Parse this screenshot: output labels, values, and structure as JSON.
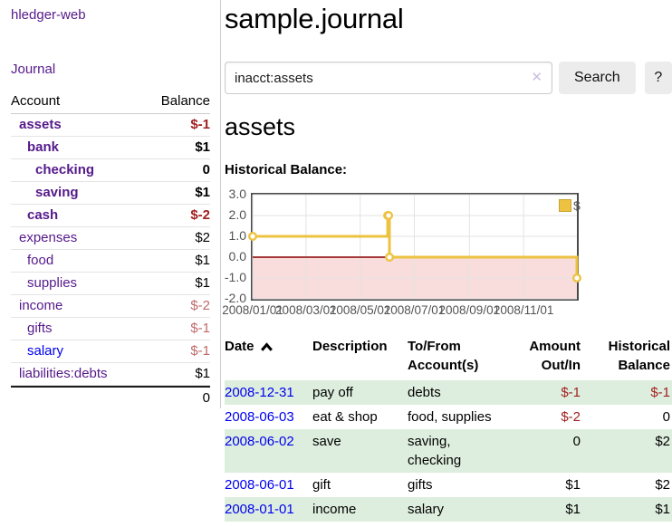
{
  "app": {
    "brand": "hledger-web"
  },
  "sidebar": {
    "journal_label": "Journal",
    "accounts_header": {
      "account": "Account",
      "balance": "Balance"
    },
    "accounts": [
      {
        "name": "assets",
        "balance": "$-1"
      },
      {
        "name": "bank",
        "balance": "$1"
      },
      {
        "name": "checking",
        "balance": "0"
      },
      {
        "name": "saving",
        "balance": "$1"
      },
      {
        "name": "cash",
        "balance": "$-2"
      },
      {
        "name": "expenses",
        "balance": "$2"
      },
      {
        "name": "food",
        "balance": "$1"
      },
      {
        "name": "supplies",
        "balance": "$1"
      },
      {
        "name": "income",
        "balance": "$-2"
      },
      {
        "name": "gifts",
        "balance": "$-1"
      },
      {
        "name": "salary",
        "balance": "$-1"
      },
      {
        "name": "liabilities:debts",
        "balance": "$1"
      }
    ],
    "total": "0"
  },
  "header": {
    "title": "sample.journal"
  },
  "search": {
    "value": "inacct:assets",
    "clear_icon": "✕",
    "button_label": "Search",
    "help_label": "?"
  },
  "content": {
    "account_title": "assets",
    "chart_title": "Historical Balance:"
  },
  "chart_data": {
    "type": "line",
    "step": true,
    "title": "Historical Balance:",
    "xlim": [
      "2008-01-01",
      "2008-12-31"
    ],
    "ylim": [
      -2,
      3
    ],
    "x_ticks": [
      "2008/01/01",
      "2008/03/01",
      "2008/05/01",
      "2008/07/01",
      "2008/09/01",
      "2008/11/01"
    ],
    "y_ticks": [
      3.0,
      2.0,
      1.0,
      0.0,
      -1.0,
      -2.0
    ],
    "series": [
      {
        "name": "$",
        "color": "#edc240",
        "points": [
          [
            "2008-01-01",
            1
          ],
          [
            "2008-06-01",
            2
          ],
          [
            "2008-06-02",
            2
          ],
          [
            "2008-06-03",
            0
          ],
          [
            "2008-12-31",
            -1
          ]
        ]
      }
    ],
    "legend_position": "top-right",
    "grid": true,
    "negative_region_color": "#f9dcdc",
    "zero_line_color": "#8b0000",
    "gridline_color": "#e3e3e3"
  },
  "register": {
    "columns": {
      "date": "Date",
      "description": "Description",
      "accounts": "To/From Account(s)",
      "amount": "Amount Out/In",
      "historical": "Historical Balance"
    },
    "rows": [
      {
        "date": "2008-12-31",
        "description": "pay off",
        "accounts": "debts",
        "amount": "$-1",
        "historical": "$-1"
      },
      {
        "date": "2008-06-03",
        "description": "eat & shop",
        "accounts": "food, supplies",
        "amount": "$-2",
        "historical": "0"
      },
      {
        "date": "2008-06-02",
        "description": "save",
        "accounts": "saving, checking",
        "amount": "0",
        "historical": "$2"
      },
      {
        "date": "2008-06-01",
        "description": "gift",
        "accounts": "gifts",
        "amount": "$1",
        "historical": "$2"
      },
      {
        "date": "2008-01-01",
        "description": "income",
        "accounts": "salary",
        "amount": "$1",
        "historical": "$1"
      }
    ]
  },
  "colors": {
    "link_purple": "#551a8b",
    "link_blue": "#0000ee",
    "negative": "#a02020",
    "negative_faded": "#bf6a6a",
    "row_shade_green": "#deeede",
    "series_gold": "#edc240"
  }
}
